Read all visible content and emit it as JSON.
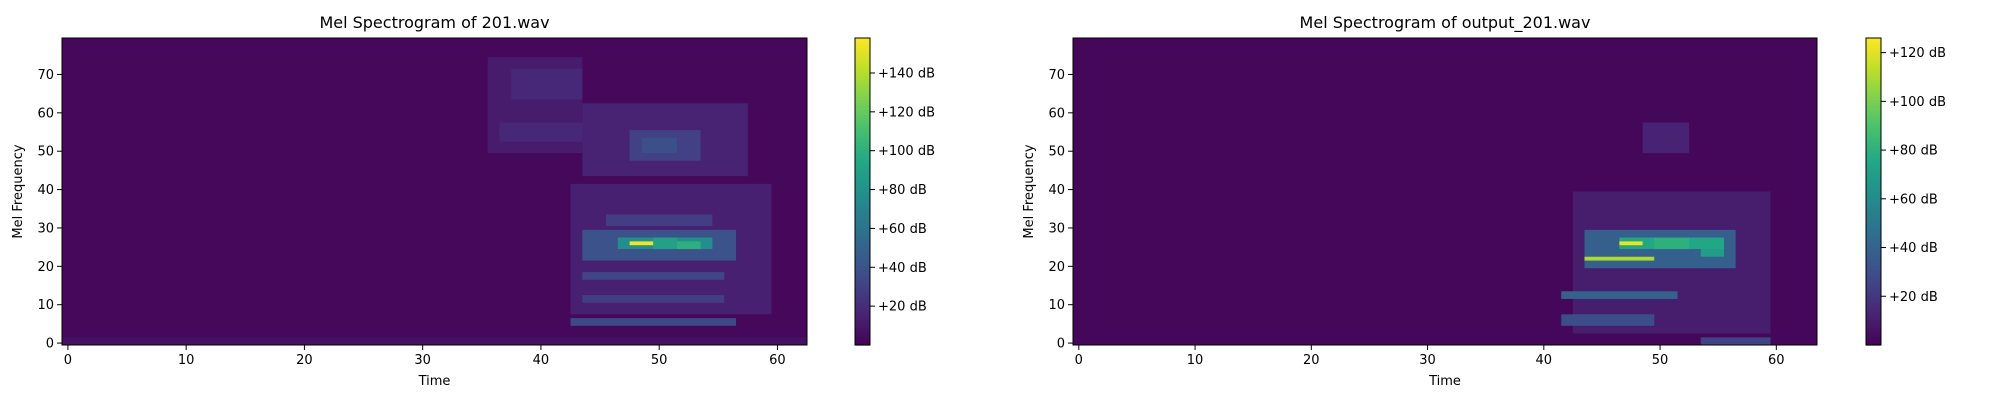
{
  "chart_data": [
    {
      "type": "heatmap",
      "title": "Mel Spectrogram of 201.wav",
      "xlabel": "Time",
      "ylabel": "Mel Frequency",
      "xlim": [
        -0.5,
        62.5
      ],
      "ylim": [
        -0.5,
        79.5
      ],
      "xticks": [
        "0",
        "10",
        "20",
        "30",
        "40",
        "50",
        "60"
      ],
      "yticks": [
        "0",
        "10",
        "20",
        "30",
        "40",
        "50",
        "60",
        "70"
      ],
      "colorbar": {
        "min": 0,
        "max": 158,
        "ticks": [
          "+20 dB",
          "+40 dB",
          "+60 dB",
          "+80 dB",
          "+100 dB",
          "+120 dB",
          "+140 dB"
        ],
        "tick_values": [
          20,
          40,
          60,
          80,
          100,
          120,
          140
        ]
      },
      "cmap": "viridis",
      "regions": [
        {
          "t": [
            0,
            63
          ],
          "m": [
            0,
            80
          ],
          "db": 3
        },
        {
          "t": [
            0,
            63
          ],
          "m": [
            0,
            2
          ],
          "db": 7
        },
        {
          "t": [
            36,
            44
          ],
          "m": [
            50,
            75
          ],
          "db": 12
        },
        {
          "t": [
            38,
            44
          ],
          "m": [
            64,
            72
          ],
          "db": 18
        },
        {
          "t": [
            37,
            45
          ],
          "m": [
            53,
            58
          ],
          "db": 18
        },
        {
          "t": [
            44,
            58
          ],
          "m": [
            44,
            63
          ],
          "db": 15
        },
        {
          "t": [
            48,
            54
          ],
          "m": [
            48,
            56
          ],
          "db": 30
        },
        {
          "t": [
            49,
            52
          ],
          "m": [
            50,
            54
          ],
          "db": 38
        },
        {
          "t": [
            43,
            60
          ],
          "m": [
            8,
            42
          ],
          "db": 14
        },
        {
          "t": [
            44,
            57
          ],
          "m": [
            22,
            30
          ],
          "db": 40
        },
        {
          "t": [
            47,
            55
          ],
          "m": [
            25,
            28
          ],
          "db": 78
        },
        {
          "t": [
            48,
            50
          ],
          "m": [
            26,
            27
          ],
          "db": 155
        },
        {
          "t": [
            50,
            52
          ],
          "m": [
            25,
            28
          ],
          "db": 90
        },
        {
          "t": [
            52,
            54
          ],
          "m": [
            25,
            27
          ],
          "db": 100
        },
        {
          "t": [
            43,
            57
          ],
          "m": [
            5,
            7
          ],
          "db": 35
        },
        {
          "t": [
            44,
            56
          ],
          "m": [
            17,
            19
          ],
          "db": 32
        },
        {
          "t": [
            44,
            56
          ],
          "m": [
            11,
            13
          ],
          "db": 28
        },
        {
          "t": [
            46,
            55
          ],
          "m": [
            31,
            34
          ],
          "db": 28
        }
      ]
    },
    {
      "type": "heatmap",
      "title": "Mel Spectrogram of output_201.wav",
      "xlabel": "Time",
      "ylabel": "Mel Frequency",
      "xlim": [
        -0.5,
        63.5
      ],
      "ylim": [
        -0.5,
        79.5
      ],
      "xticks": [
        "0",
        "10",
        "20",
        "30",
        "40",
        "50",
        "60"
      ],
      "yticks": [
        "0",
        "10",
        "20",
        "30",
        "40",
        "50",
        "60",
        "70"
      ],
      "colorbar": {
        "min": 0,
        "max": 126,
        "ticks": [
          "+20 dB",
          "+40 dB",
          "+60 dB",
          "+80 dB",
          "+100 dB",
          "+120 dB"
        ],
        "tick_values": [
          20,
          40,
          60,
          80,
          100,
          120
        ]
      },
      "cmap": "viridis",
      "regions": [
        {
          "t": [
            0,
            64
          ],
          "m": [
            0,
            80
          ],
          "db": 2
        },
        {
          "t": [
            49,
            53
          ],
          "m": [
            50,
            58
          ],
          "db": 12
        },
        {
          "t": [
            43,
            60
          ],
          "m": [
            3,
            40
          ],
          "db": 10
        },
        {
          "t": [
            44,
            57
          ],
          "m": [
            20,
            30
          ],
          "db": 38
        },
        {
          "t": [
            47,
            56
          ],
          "m": [
            25,
            28
          ],
          "db": 75
        },
        {
          "t": [
            47,
            49
          ],
          "m": [
            26,
            27
          ],
          "db": 122
        },
        {
          "t": [
            44,
            50
          ],
          "m": [
            22,
            23
          ],
          "db": 110
        },
        {
          "t": [
            50,
            53
          ],
          "m": [
            25,
            28
          ],
          "db": 80
        },
        {
          "t": [
            54,
            56
          ],
          "m": [
            23,
            25
          ],
          "db": 70
        },
        {
          "t": [
            42,
            52
          ],
          "m": [
            12,
            14
          ],
          "db": 40
        },
        {
          "t": [
            42,
            50
          ],
          "m": [
            5,
            8
          ],
          "db": 30
        },
        {
          "t": [
            54,
            60
          ],
          "m": [
            0,
            2
          ],
          "db": 25
        }
      ]
    }
  ]
}
